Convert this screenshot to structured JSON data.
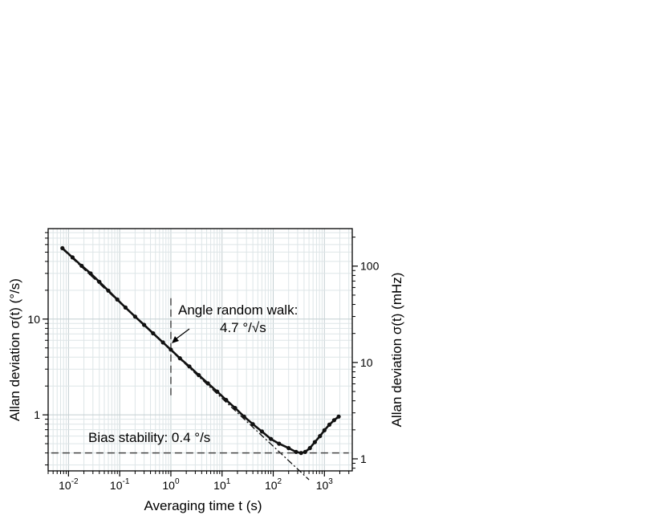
{
  "chart_data": {
    "type": "scatter",
    "title": "",
    "xlabel": "Averaging time t (s)",
    "ylabel": "Allan deviation σ(t) (°/s)",
    "ylabel_right": "Allan deviation σ(t) (mHz)",
    "xscale": "log",
    "yscale": "log",
    "xlim": [
      0.004,
      3500
    ],
    "ylim": [
      0.26,
      88
    ],
    "ylim_right": [
      0.75,
      245
    ],
    "grid": true,
    "x_ticks": [
      {
        "value": 0.01,
        "base": "10",
        "exp": "-2"
      },
      {
        "value": 0.1,
        "base": "10",
        "exp": "-1"
      },
      {
        "value": 1,
        "base": "10",
        "exp": "0"
      },
      {
        "value": 10,
        "base": "10",
        "exp": "1"
      },
      {
        "value": 100,
        "base": "10",
        "exp": "2"
      },
      {
        "value": 1000,
        "base": "10",
        "exp": "3"
      }
    ],
    "y_ticks": [
      {
        "value": 1,
        "label": "1"
      },
      {
        "value": 10,
        "label": "10"
      }
    ],
    "y_ticks_right": [
      {
        "value": 1,
        "label": "1"
      },
      {
        "value": 10,
        "label": "10"
      },
      {
        "value": 100,
        "label": "100"
      }
    ],
    "series": [
      {
        "name": "Allan deviation",
        "x": [
          0.0076,
          0.012,
          0.018,
          0.027,
          0.04,
          0.06,
          0.09,
          0.13,
          0.2,
          0.3,
          0.45,
          0.7,
          1.0,
          1.5,
          2.3,
          3.5,
          5.3,
          8,
          12,
          18,
          27,
          40,
          60,
          90,
          130,
          200,
          280,
          350,
          420,
          520,
          650,
          820,
          1000,
          1250,
          1550,
          1900
        ],
        "y": [
          55,
          44,
          36,
          30,
          24.5,
          19.8,
          16.0,
          13.2,
          10.6,
          8.7,
          7.1,
          5.7,
          4.8,
          3.9,
          3.2,
          2.6,
          2.13,
          1.75,
          1.43,
          1.18,
          0.96,
          0.8,
          0.67,
          0.56,
          0.5,
          0.45,
          0.41,
          0.4,
          0.41,
          0.45,
          0.52,
          0.6,
          0.69,
          0.79,
          0.88,
          0.96
        ]
      }
    ],
    "fits": [
      {
        "name": "Angle random walk fit",
        "slope": -0.5,
        "coefficient": 4.7,
        "x_range": [
          0.0076,
          500
        ]
      },
      {
        "name": "Bias stability level",
        "y": 0.4,
        "x_range": [
          0.0046,
          3000
        ]
      },
      {
        "name": "Marker at t = 1 s",
        "x": 1,
        "y_range": [
          1.6,
          18
        ]
      }
    ],
    "annotations": {
      "arw_line1": "Angle random walk:",
      "arw_line2": "4.7 °/√s",
      "bias": "Bias stability: 0.4 °/s"
    }
  }
}
